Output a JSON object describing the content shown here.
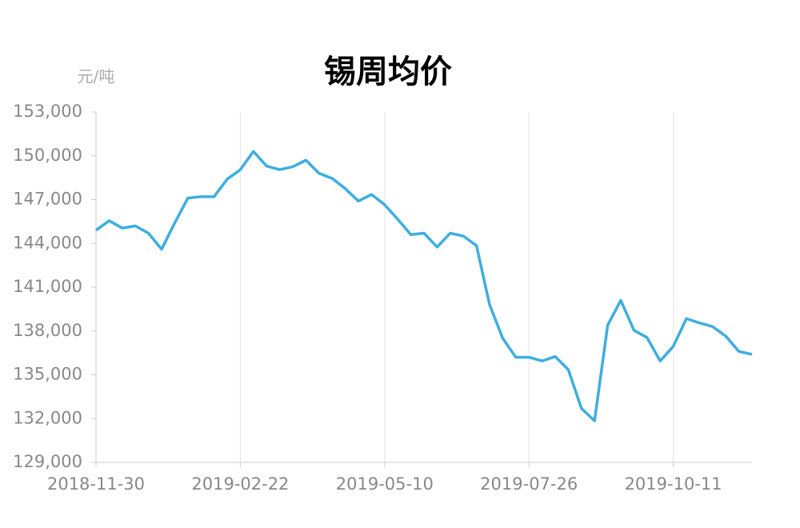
{
  "chart_data": {
    "type": "line",
    "title": "锡周均价",
    "y_unit": "元/吨",
    "categories": [
      "2018-11-30",
      null,
      null,
      null,
      null,
      null,
      null,
      null,
      null,
      null,
      null,
      "2019-02-22",
      null,
      null,
      null,
      null,
      null,
      null,
      null,
      null,
      null,
      null,
      "2019-05-10",
      null,
      null,
      null,
      null,
      null,
      null,
      null,
      null,
      null,
      null,
      "2019-07-26",
      null,
      null,
      null,
      null,
      null,
      null,
      null,
      null,
      null,
      null,
      "2019-10-11",
      null,
      null,
      null,
      null,
      null,
      null
    ],
    "series": [
      {
        "name": "锡周均价",
        "color": "#3eaee0",
        "values": [
          144900,
          145550,
          145050,
          145200,
          144700,
          143600,
          145400,
          147100,
          147200,
          147200,
          148400,
          149050,
          150300,
          149300,
          149050,
          149250,
          149700,
          148800,
          148450,
          147750,
          146900,
          147350,
          146650,
          145650,
          144600,
          144700,
          143750,
          144700,
          144500,
          143850,
          139800,
          137500,
          136200,
          136200,
          135950,
          136250,
          135350,
          132700,
          131850,
          138400,
          140100,
          138050,
          137550,
          135950,
          136950,
          138850,
          138550,
          138300,
          137650,
          136600,
          136400
        ]
      }
    ],
    "ylim": [
      129000,
      153000
    ],
    "yticks": [
      {
        "value": 129000,
        "label": "129,000"
      },
      {
        "value": 132000,
        "label": "132,000"
      },
      {
        "value": 135000,
        "label": "135,000"
      },
      {
        "value": 138000,
        "label": "138,000"
      },
      {
        "value": 141000,
        "label": "141,000"
      },
      {
        "value": 144000,
        "label": "144,000"
      },
      {
        "value": 147000,
        "label": "147,000"
      },
      {
        "value": 150000,
        "label": "150,000"
      },
      {
        "value": 153000,
        "label": "153,000"
      }
    ],
    "grid": true
  }
}
